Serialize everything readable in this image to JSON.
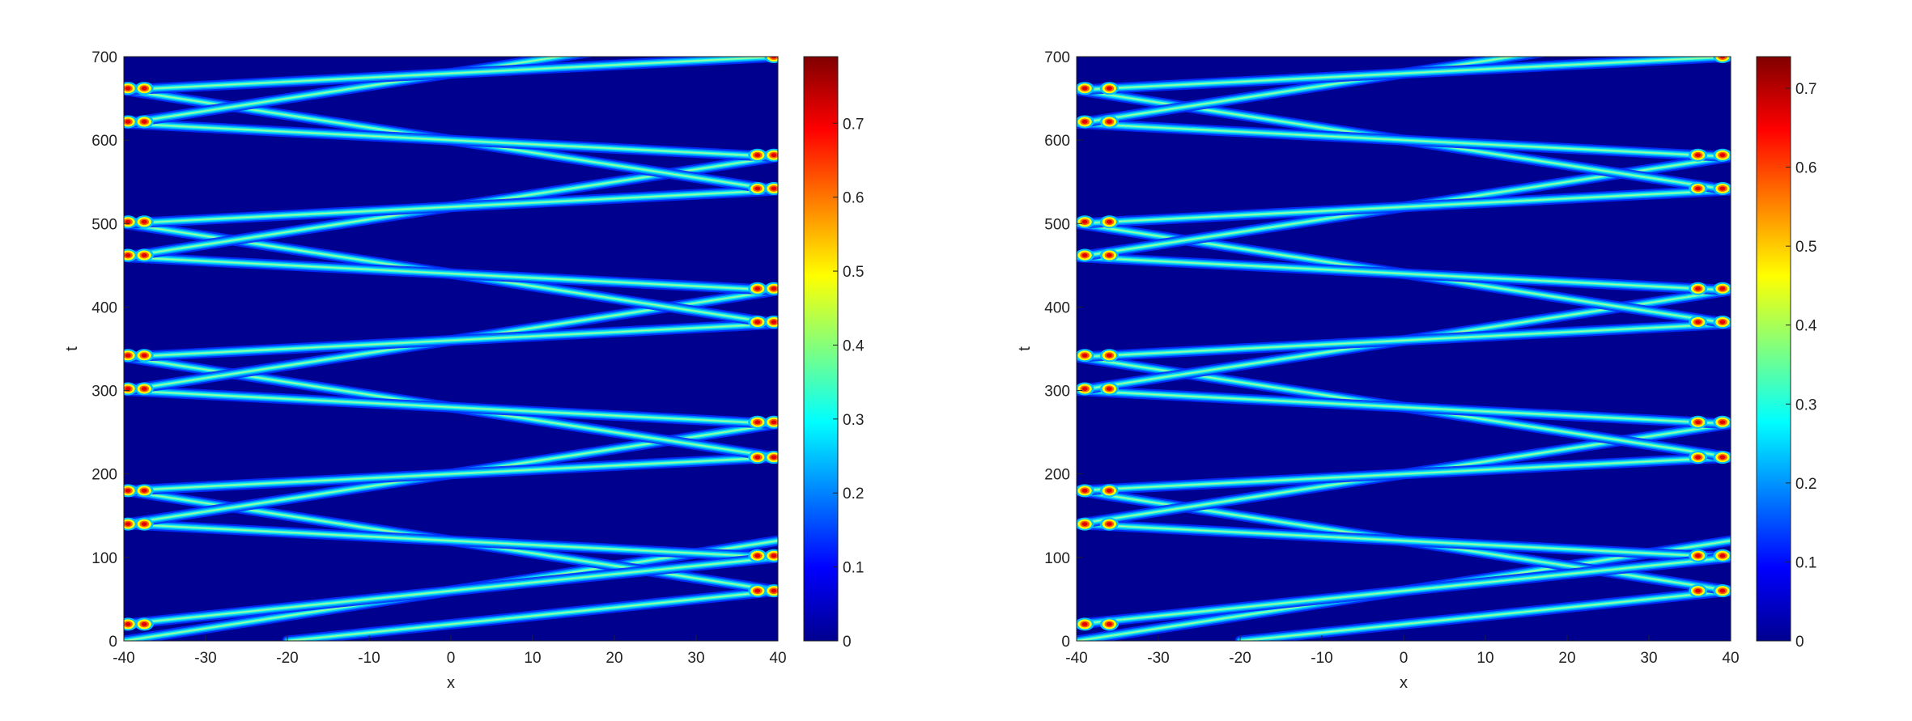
{
  "chart_data": [
    {
      "type": "heatmap",
      "title": "",
      "xlabel": "x",
      "ylabel": "t",
      "xlim": [
        -40,
        40
      ],
      "ylim": [
        0,
        700
      ],
      "xticks": [
        -40,
        -30,
        -20,
        -10,
        0,
        10,
        20,
        30,
        40
      ],
      "yticks": [
        0,
        100,
        200,
        300,
        400,
        500,
        600,
        700
      ],
      "colorbar": {
        "min": 0,
        "max": 0.79,
        "ticks": [
          0,
          0.1,
          0.2,
          0.3,
          0.4,
          0.5,
          0.6,
          0.7
        ],
        "colormap": "jet"
      },
      "background_color": "#00008f",
      "grid": false,
      "beams": [
        {
          "x": [
            -40,
            40
          ],
          "t": [
            0,
            120
          ]
        },
        {
          "x": [
            -20,
            40
          ],
          "t": [
            0,
            60
          ]
        },
        {
          "x": [
            40,
            -40
          ],
          "t": [
            60,
            180
          ]
        },
        {
          "x": [
            40,
            -40
          ],
          "t": [
            100,
            140
          ]
        },
        {
          "x": [
            -40,
            40
          ],
          "t": [
            20,
            100
          ]
        },
        {
          "x": [
            -40,
            40
          ],
          "t": [
            140,
            260
          ]
        },
        {
          "x": [
            -40,
            40
          ],
          "t": [
            180,
            220
          ]
        },
        {
          "x": [
            40,
            -40
          ],
          "t": [
            220,
            340
          ]
        },
        {
          "x": [
            40,
            -40
          ],
          "t": [
            260,
            300
          ]
        },
        {
          "x": [
            -40,
            40
          ],
          "t": [
            300,
            420
          ]
        },
        {
          "x": [
            -40,
            40
          ],
          "t": [
            340,
            380
          ]
        },
        {
          "x": [
            40,
            -40
          ],
          "t": [
            380,
            500
          ]
        },
        {
          "x": [
            40,
            -40
          ],
          "t": [
            420,
            460
          ]
        },
        {
          "x": [
            -40,
            40
          ],
          "t": [
            460,
            580
          ]
        },
        {
          "x": [
            -40,
            40
          ],
          "t": [
            500,
            540
          ]
        },
        {
          "x": [
            40,
            -40
          ],
          "t": [
            540,
            660
          ]
        },
        {
          "x": [
            40,
            -40
          ],
          "t": [
            580,
            620
          ]
        },
        {
          "x": [
            -40,
            40
          ],
          "t": [
            620,
            740
          ]
        },
        {
          "x": [
            -40,
            40
          ],
          "t": [
            660,
            700
          ]
        }
      ],
      "hotspots": [
        {
          "x": -37.5,
          "t": 20
        },
        {
          "x": -39.5,
          "t": 20
        },
        {
          "x": 37.5,
          "t": 60
        },
        {
          "x": 39.5,
          "t": 60
        },
        {
          "x": 37.5,
          "t": 102
        },
        {
          "x": 39.5,
          "t": 102
        },
        {
          "x": -37.5,
          "t": 140
        },
        {
          "x": -39.5,
          "t": 140
        },
        {
          "x": -37.5,
          "t": 180
        },
        {
          "x": -39.5,
          "t": 180
        },
        {
          "x": 37.5,
          "t": 220
        },
        {
          "x": 39.5,
          "t": 220
        },
        {
          "x": 37.5,
          "t": 262
        },
        {
          "x": 39.5,
          "t": 262
        },
        {
          "x": -37.5,
          "t": 302
        },
        {
          "x": -39.5,
          "t": 302
        },
        {
          "x": -37.5,
          "t": 342
        },
        {
          "x": -39.5,
          "t": 342
        },
        {
          "x": 37.5,
          "t": 382
        },
        {
          "x": 39.5,
          "t": 382
        },
        {
          "x": 37.5,
          "t": 422
        },
        {
          "x": 39.5,
          "t": 422
        },
        {
          "x": -37.5,
          "t": 462
        },
        {
          "x": -39.5,
          "t": 462
        },
        {
          "x": -37.5,
          "t": 502
        },
        {
          "x": -39.5,
          "t": 502
        },
        {
          "x": 37.5,
          "t": 542
        },
        {
          "x": 39.5,
          "t": 542
        },
        {
          "x": 37.5,
          "t": 582
        },
        {
          "x": 39.5,
          "t": 582
        },
        {
          "x": -37.5,
          "t": 622
        },
        {
          "x": -39.5,
          "t": 622
        },
        {
          "x": -37.5,
          "t": 662
        },
        {
          "x": -39.5,
          "t": 662
        },
        {
          "x": 39.5,
          "t": 700
        }
      ]
    },
    {
      "type": "heatmap",
      "title": "",
      "xlabel": "x",
      "ylabel": "t",
      "xlim": [
        -40,
        40
      ],
      "ylim": [
        0,
        700
      ],
      "xticks": [
        -40,
        -30,
        -20,
        -10,
        0,
        10,
        20,
        30,
        40
      ],
      "yticks": [
        0,
        100,
        200,
        300,
        400,
        500,
        600,
        700
      ],
      "colorbar": {
        "min": 0,
        "max": 0.74,
        "ticks": [
          0,
          0.1,
          0.2,
          0.3,
          0.4,
          0.5,
          0.6,
          0.7
        ],
        "colormap": "jet"
      },
      "background_color": "#00008f",
      "grid": false,
      "beams": [
        {
          "x": [
            -40,
            40
          ],
          "t": [
            0,
            120
          ]
        },
        {
          "x": [
            -20,
            40
          ],
          "t": [
            0,
            60
          ]
        },
        {
          "x": [
            40,
            -40
          ],
          "t": [
            60,
            180
          ]
        },
        {
          "x": [
            40,
            -40
          ],
          "t": [
            100,
            140
          ]
        },
        {
          "x": [
            -40,
            40
          ],
          "t": [
            20,
            100
          ]
        },
        {
          "x": [
            -40,
            40
          ],
          "t": [
            140,
            260
          ]
        },
        {
          "x": [
            -40,
            40
          ],
          "t": [
            180,
            220
          ]
        },
        {
          "x": [
            40,
            -40
          ],
          "t": [
            220,
            340
          ]
        },
        {
          "x": [
            40,
            -40
          ],
          "t": [
            260,
            300
          ]
        },
        {
          "x": [
            -40,
            40
          ],
          "t": [
            300,
            420
          ]
        },
        {
          "x": [
            -40,
            40
          ],
          "t": [
            340,
            380
          ]
        },
        {
          "x": [
            40,
            -40
          ],
          "t": [
            380,
            500
          ]
        },
        {
          "x": [
            40,
            -40
          ],
          "t": [
            420,
            460
          ]
        },
        {
          "x": [
            -40,
            40
          ],
          "t": [
            460,
            580
          ]
        },
        {
          "x": [
            -40,
            40
          ],
          "t": [
            500,
            540
          ]
        },
        {
          "x": [
            40,
            -40
          ],
          "t": [
            540,
            660
          ]
        },
        {
          "x": [
            40,
            -40
          ],
          "t": [
            580,
            620
          ]
        },
        {
          "x": [
            -40,
            40
          ],
          "t": [
            620,
            740
          ]
        },
        {
          "x": [
            -40,
            40
          ],
          "t": [
            660,
            700
          ]
        }
      ],
      "hotspots": [
        {
          "x": -36,
          "t": 20
        },
        {
          "x": -39,
          "t": 20
        },
        {
          "x": 36,
          "t": 60
        },
        {
          "x": 39,
          "t": 60
        },
        {
          "x": 36,
          "t": 102
        },
        {
          "x": 39,
          "t": 102
        },
        {
          "x": -36,
          "t": 140
        },
        {
          "x": -39,
          "t": 140
        },
        {
          "x": -36,
          "t": 180
        },
        {
          "x": -39,
          "t": 180
        },
        {
          "x": 36,
          "t": 220
        },
        {
          "x": 39,
          "t": 220
        },
        {
          "x": 36,
          "t": 262
        },
        {
          "x": 39,
          "t": 262
        },
        {
          "x": -36,
          "t": 302
        },
        {
          "x": -39,
          "t": 302
        },
        {
          "x": -36,
          "t": 342
        },
        {
          "x": -39,
          "t": 342
        },
        {
          "x": 36,
          "t": 382
        },
        {
          "x": 39,
          "t": 382
        },
        {
          "x": 36,
          "t": 422
        },
        {
          "x": 39,
          "t": 422
        },
        {
          "x": -36,
          "t": 462
        },
        {
          "x": -39,
          "t": 462
        },
        {
          "x": -36,
          "t": 502
        },
        {
          "x": -39,
          "t": 502
        },
        {
          "x": 36,
          "t": 542
        },
        {
          "x": 39,
          "t": 542
        },
        {
          "x": 36,
          "t": 582
        },
        {
          "x": 39,
          "t": 582
        },
        {
          "x": -36,
          "t": 622
        },
        {
          "x": -39,
          "t": 622
        },
        {
          "x": -36,
          "t": 662
        },
        {
          "x": -39,
          "t": 662
        },
        {
          "x": 39,
          "t": 700
        }
      ]
    }
  ]
}
